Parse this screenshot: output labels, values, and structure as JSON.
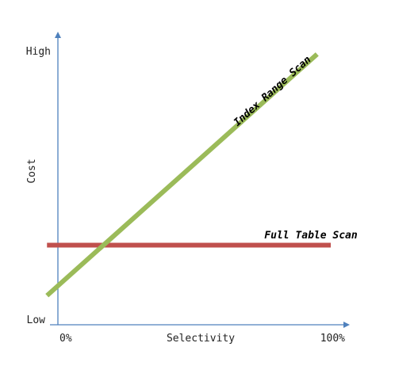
{
  "chart_data": {
    "type": "line",
    "title": "",
    "xlabel": "Selectivity",
    "ylabel": "Cost",
    "x_tick_labels": [
      "0%",
      "100%"
    ],
    "y_tick_labels": [
      "Low",
      "High"
    ],
    "xlim": [
      0,
      100
    ],
    "ylim": [
      0,
      100
    ],
    "grid": false,
    "legend": "none",
    "series": [
      {
        "name": "Index Range Scan",
        "color": "#9bbb59",
        "points": [
          [
            -4,
            8
          ],
          [
            95,
            99
          ]
        ]
      },
      {
        "name": "Full Table Scan",
        "color": "#c0504d",
        "points": [
          [
            -4,
            27
          ],
          [
            100,
            27
          ]
        ]
      }
    ]
  }
}
